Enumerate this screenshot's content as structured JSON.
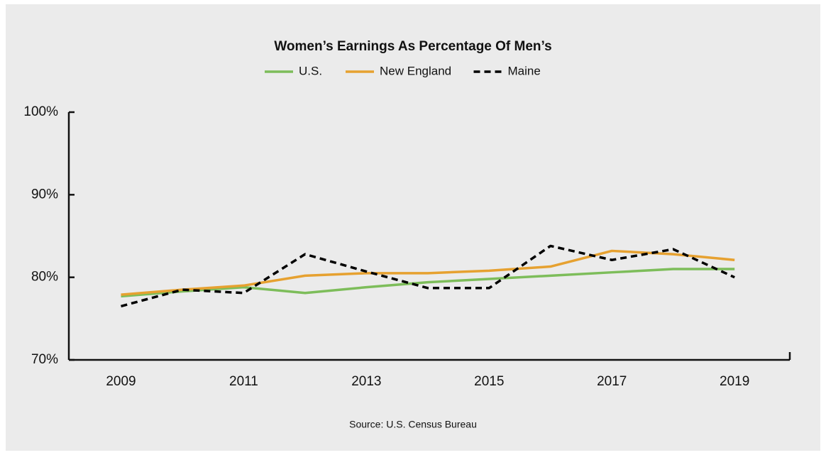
{
  "chart_data": {
    "type": "line",
    "title": "Women’s Earnings As Percentage Of Men’s",
    "source": "Source: U.S. Census Bureau",
    "x": [
      2009,
      2010,
      2011,
      2012,
      2013,
      2014,
      2015,
      2016,
      2017,
      2018,
      2019
    ],
    "xlim": [
      2008.15,
      2019.9
    ],
    "xticks": [
      2009,
      2011,
      2013,
      2015,
      2017,
      2019
    ],
    "ylim": [
      70,
      100
    ],
    "yticks": [
      {
        "value": 70,
        "label": "70%"
      },
      {
        "value": 80,
        "label": "80%"
      },
      {
        "value": 90,
        "label": "90%"
      },
      {
        "value": 100,
        "label": "100%"
      }
    ],
    "grid": false,
    "legend": "top",
    "series": [
      {
        "name": "U.S.",
        "color": "#7dbd5a",
        "dash": "solid",
        "values": [
          77.7,
          78.3,
          78.8,
          78.1,
          78.8,
          79.4,
          79.8,
          80.2,
          80.6,
          81.0,
          81.0
        ]
      },
      {
        "name": "New England",
        "color": "#e6a130",
        "dash": "solid",
        "values": [
          77.9,
          78.5,
          79.0,
          80.2,
          80.5,
          80.5,
          80.8,
          81.3,
          83.2,
          82.8,
          82.1
        ]
      },
      {
        "name": "Maine",
        "color": "#000000",
        "dash": "dashed",
        "values": [
          76.5,
          78.5,
          78.1,
          82.8,
          80.7,
          78.7,
          78.7,
          83.8,
          82.1,
          83.4,
          80.0
        ]
      }
    ]
  }
}
